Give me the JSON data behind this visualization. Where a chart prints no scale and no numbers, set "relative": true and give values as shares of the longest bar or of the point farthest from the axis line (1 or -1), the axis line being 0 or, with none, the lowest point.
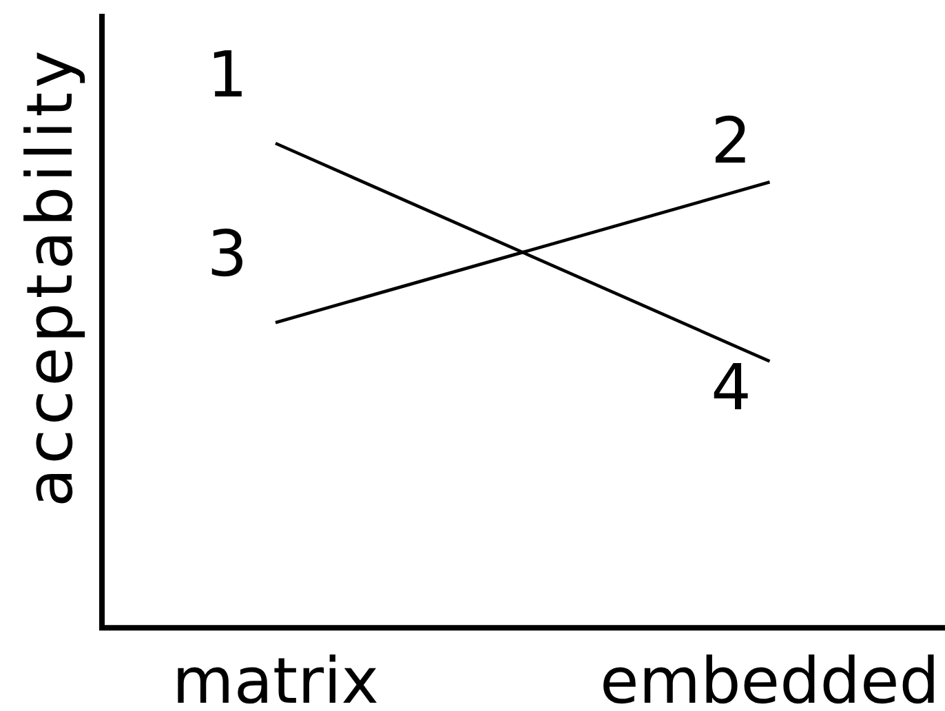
{
  "chart_data": {
    "type": "line",
    "ylabel": "acceptability",
    "categories": [
      "matrix",
      "embedded"
    ],
    "relative": true,
    "series": [
      {
        "color": "#000000",
        "values": [
          1,
          0.55
        ]
      },
      {
        "color": "#000000",
        "values": [
          0.63,
          0.92
        ]
      }
    ],
    "annotations": [
      {
        "text": "1",
        "x": "matrix",
        "y": 1
      },
      {
        "text": "2",
        "x": "embedded",
        "y": 0.92
      },
      {
        "text": "3",
        "x": "matrix",
        "y": 0.63
      },
      {
        "text": "4",
        "x": "embedded",
        "y": 0.55
      }
    ],
    "grid": false,
    "legend": false,
    "marker": "none",
    "line_style": "solid"
  }
}
